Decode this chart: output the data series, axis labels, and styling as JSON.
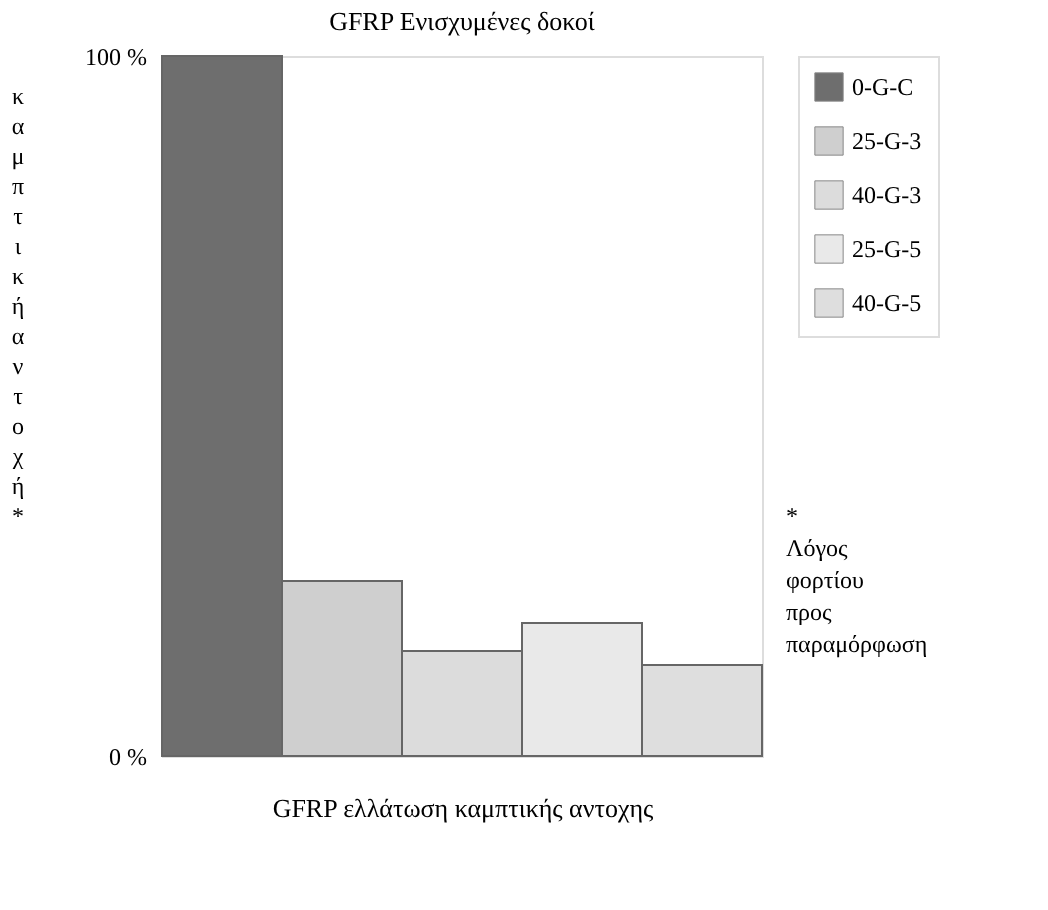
{
  "chart_data": {
    "type": "bar",
    "title": "GFRP Ενισχυμένες δοκοί",
    "xlabel": "GFRP ελλάτωση καμπτικής αντοχης",
    "ylabel": "καμπτική αντοχή*",
    "categories": [
      null,
      null,
      null,
      null,
      null
    ],
    "series": [
      {
        "name": "0-G-C",
        "color": "#6e6e6e",
        "values": [
          100,
          null,
          null,
          null,
          null
        ]
      },
      {
        "name": "25-G-3",
        "color": "#cfcfcf",
        "values": [
          null,
          25,
          null,
          null,
          null
        ]
      },
      {
        "name": "40-G-3",
        "color": "#dcdcdc",
        "values": [
          null,
          null,
          15,
          null,
          null
        ]
      },
      {
        "name": "25-G-5",
        "color": "#e9e9e9",
        "values": [
          null,
          null,
          null,
          19,
          null
        ]
      },
      {
        "name": "40-G-5",
        "color": "#dedede",
        "values": [
          null,
          null,
          null,
          null,
          13
        ]
      }
    ],
    "ylim": [
      0,
      100
    ],
    "yticks": [
      {
        "value": 0,
        "label": "0 %"
      },
      {
        "value": 100,
        "label": "100 %"
      }
    ],
    "stacked": true,
    "tick_labels": "y",
    "grid": false,
    "legend": "right",
    "annotations": [
      "* Λόγος φορτίου προς παραμόρφωση"
    ]
  }
}
